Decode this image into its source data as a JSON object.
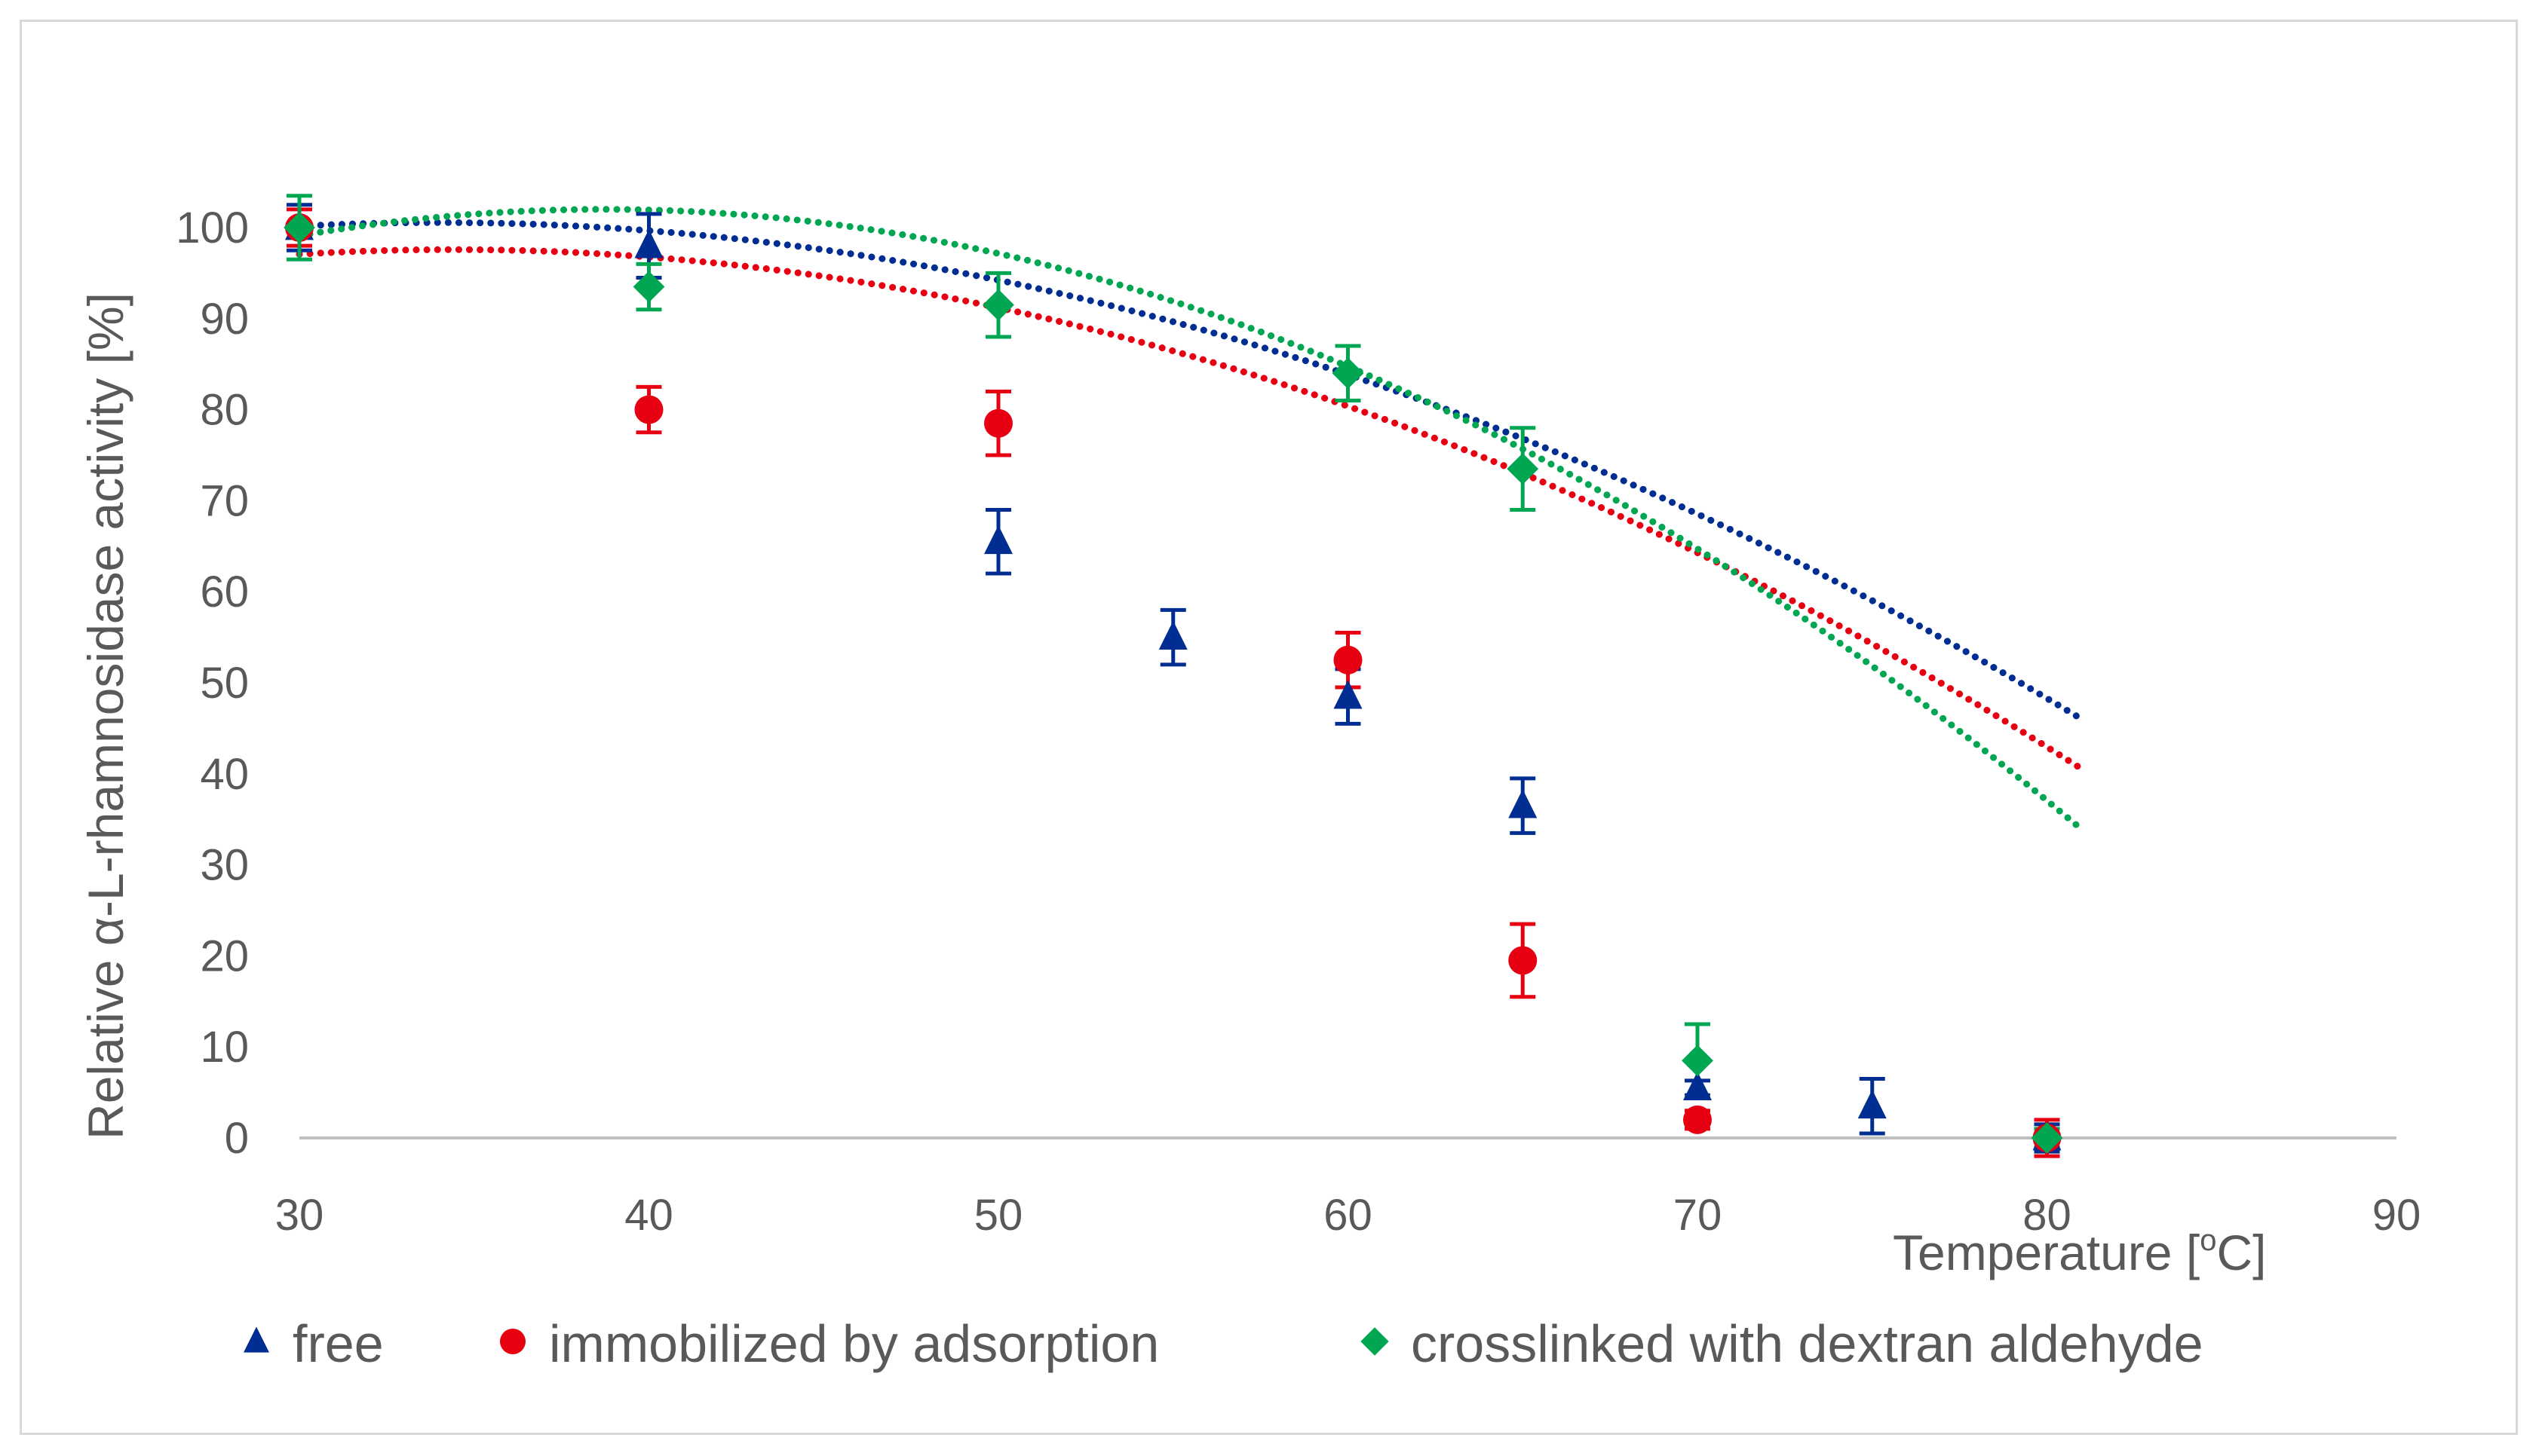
{
  "chart_data": {
    "type": "scatter",
    "title": "",
    "xlabel": "Temperature [",
    "xlabel_sup": "o",
    "xlabel_tail": "C]",
    "ylabel": "Relative  α-L-rhamnosidase activity [%]",
    "xlim": [
      30,
      90
    ],
    "ylim": [
      0,
      100
    ],
    "xticks": [
      30,
      40,
      50,
      60,
      70,
      80,
      90
    ],
    "yticks": [
      0,
      10,
      20,
      30,
      40,
      50,
      60,
      70,
      80,
      90,
      100
    ],
    "grid": false,
    "legend_position": "bottom",
    "series": [
      {
        "name": "free",
        "color": "#002d91",
        "marker": "triangle",
        "x": [
          30,
          40,
          50,
          55,
          60,
          65,
          70,
          75,
          80
        ],
        "y": [
          100,
          98,
          65.5,
          55,
          48.5,
          36.5,
          5.5,
          3.5,
          0
        ],
        "err": [
          2.5,
          3.5,
          3.5,
          3,
          3,
          3,
          0.8,
          3,
          1.5
        ],
        "trend": {
          "type": "poly2",
          "coef": [
            -0.0247,
            1.6796,
            72.0
          ]
        }
      },
      {
        "name": "immobilized by adsorption",
        "color": "#e60012",
        "marker": "circle",
        "x": [
          30,
          40,
          50,
          60,
          65,
          70,
          80
        ],
        "y": [
          100,
          80,
          78.5,
          52.5,
          19.5,
          2,
          0
        ],
        "err": [
          2,
          2.5,
          3.5,
          3,
          4,
          1,
          2
        ],
        "trend": {
          "type": "poly2",
          "coef": [
            -0.0263,
            1.8106,
            66.42
          ]
        }
      },
      {
        "name": "crosslinked with dextran aldehyde",
        "color": "#00a651",
        "marker": "diamond",
        "x": [
          30,
          40,
          50,
          60,
          65,
          70,
          80
        ],
        "y": [
          100,
          93.5,
          91.5,
          84,
          73.5,
          8.5,
          0
        ],
        "err": [
          3.5,
          2.5,
          3.5,
          3,
          4.5,
          4,
          1
        ],
        "trend": {
          "type": "poly2",
          "coef": [
            -0.0381,
            2.95,
            44.9
          ]
        }
      }
    ]
  }
}
